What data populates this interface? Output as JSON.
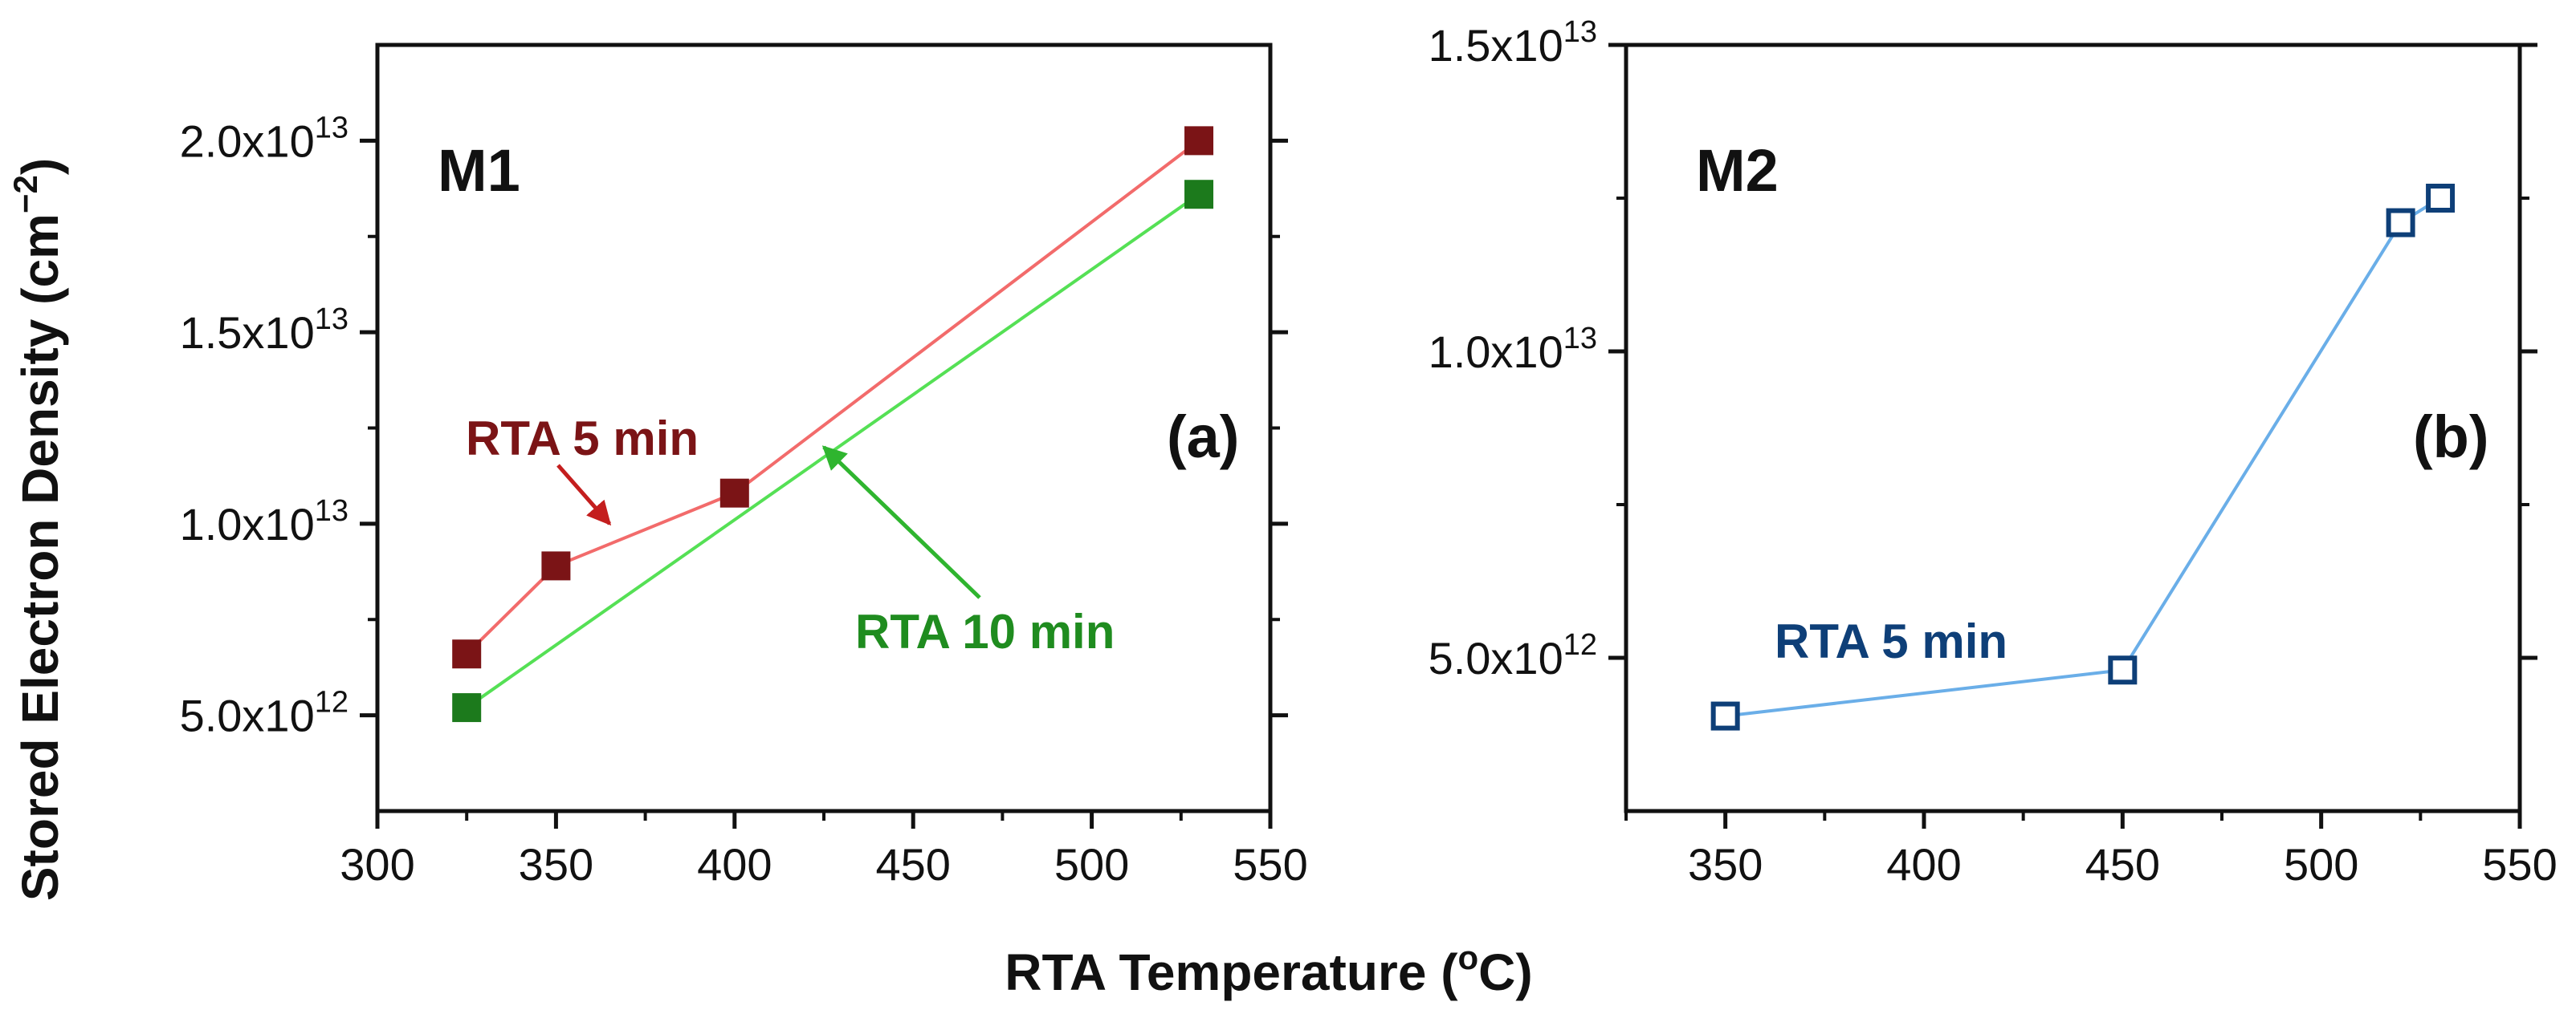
{
  "figure": {
    "ylabel": "Stored Electron Density (cm",
    "ylabel_sup": "−2",
    "ylabel_end": ")",
    "xlabel": "RTA Temperature (",
    "xlabel_sup": "o",
    "xlabel_end": "C)"
  },
  "chart_data": [
    {
      "type": "line",
      "panel": "a",
      "panel_label": "(a)",
      "tag": "M1",
      "xlim": [
        300,
        550
      ],
      "ylim": [
        2500000000000.0,
        22500000000000.0
      ],
      "xticks": [
        300,
        350,
        400,
        450,
        500,
        550
      ],
      "xtick_labels": [
        "300",
        "350",
        "400",
        "450",
        "500",
        "550"
      ],
      "yticks": [
        5000000000000.0,
        10000000000000.0,
        15000000000000.0,
        20000000000000.0
      ],
      "ytick_labels": [
        {
          "mant": "5.0x10",
          "exp": "12"
        },
        {
          "mant": "1.0x10",
          "exp": "13"
        },
        {
          "mant": "1.5x10",
          "exp": "13"
        },
        {
          "mant": "2.0x10",
          "exp": "13"
        }
      ],
      "series": [
        {
          "name": "RTA 5 min",
          "x": [
            325,
            350,
            400,
            530
          ],
          "y": [
            6600000000000.0,
            8900000000000.0,
            10800000000000.0,
            20000000000000.0
          ],
          "line_color": "#f26b6b",
          "marker_color": "#7b1416",
          "marker": "filled-square",
          "connect": "points"
        },
        {
          "name": "RTA 10 min",
          "x": [
            325,
            530
          ],
          "y": [
            5200000000000.0,
            18600000000000.0
          ],
          "line_color": "#55e055",
          "marker_color": "#1c7a1c",
          "marker": "filled-square",
          "connect": "points"
        }
      ],
      "annotations": [
        {
          "text": "RTA 5 min",
          "color": "#7b1416",
          "arrow_color": "#c41e1e",
          "points_to": [
            365,
            10000000000000.0
          ]
        },
        {
          "text": "RTA 10 min",
          "color": "#1f8c1f",
          "arrow_color": "#2fb52f",
          "points_to": [
            425,
            12000000000000.0
          ]
        }
      ]
    },
    {
      "type": "line",
      "panel": "b",
      "panel_label": "(b)",
      "tag": "M2",
      "xlim": [
        325,
        550
      ],
      "ylim": [
        2500000000000.0,
        15000000000000.0
      ],
      "xticks": [
        350,
        400,
        450,
        500,
        550
      ],
      "xtick_labels": [
        "350",
        "400",
        "450",
        "500",
        "550"
      ],
      "yticks": [
        5000000000000.0,
        10000000000000.0,
        15000000000000.0
      ],
      "ytick_labels": [
        {
          "mant": "5.0x10",
          "exp": "12"
        },
        {
          "mant": "1.0x10",
          "exp": "13"
        },
        {
          "mant": "1.5x10",
          "exp": "13"
        }
      ],
      "series": [
        {
          "name": "RTA 5 min",
          "x": [
            350,
            450,
            520,
            530
          ],
          "y": [
            4050000000000.0,
            4800000000000.0,
            12100000000000.0,
            12500000000000.0
          ],
          "line_color": "#6aaee8",
          "marker_color": "#0e3f78",
          "marker": "open-square",
          "connect": "points"
        }
      ],
      "annotations": [
        {
          "text": "RTA 5 min",
          "color": "#0e3f78"
        }
      ]
    }
  ]
}
